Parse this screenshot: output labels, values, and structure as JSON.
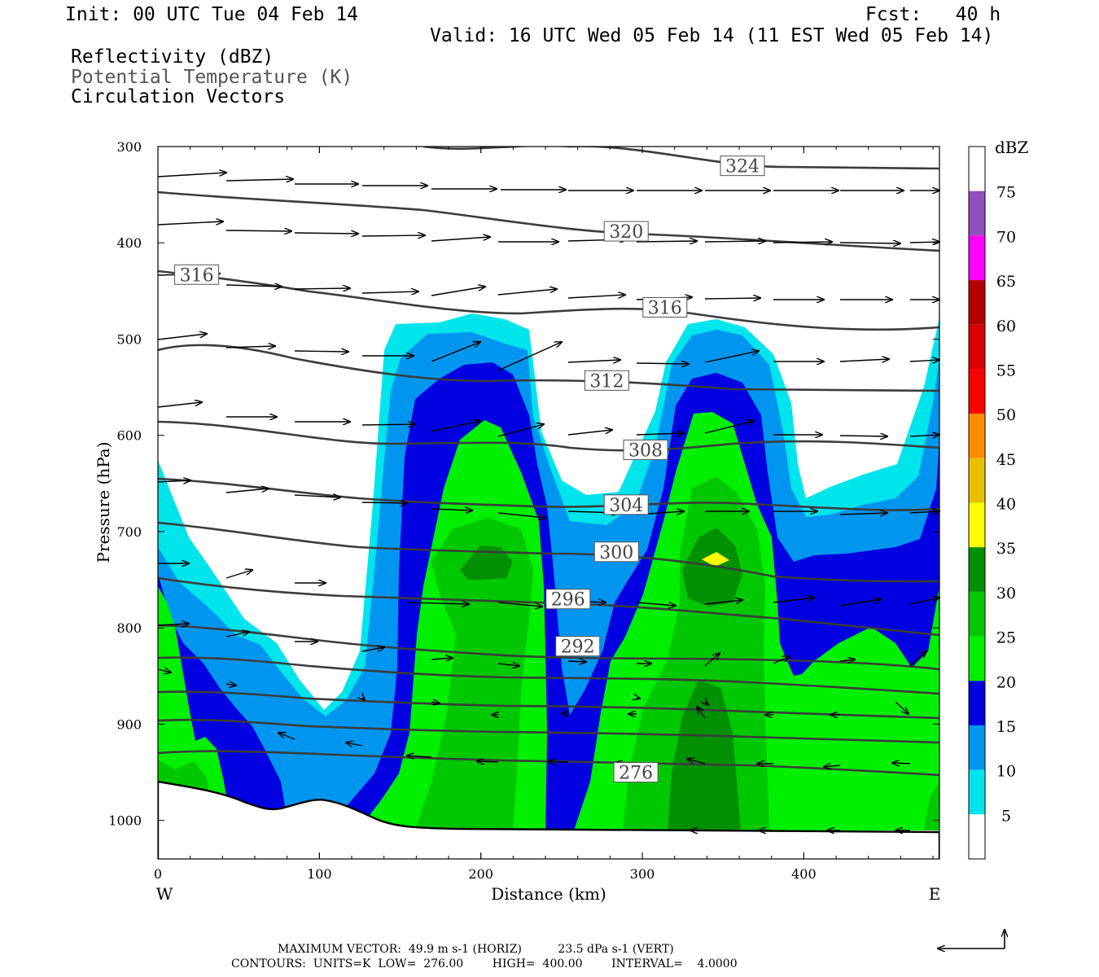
{
  "header": {
    "init": "Init: 00 UTC Tue 04 Feb 14",
    "fcst": "Fcst:   40 h",
    "valid": "Valid: 16 UTC Wed 05 Feb 14 (11 EST Wed 05 Feb 14)",
    "fields": [
      "Reflectivity (dBZ)",
      "Potential Temperature (K)",
      "Circulation Vectors"
    ]
  },
  "footer": {
    "maxvec": "MAXIMUM VECTOR:  49.9 m s-1 (HORIZ)          23.5 dPa s-1 (VERT)",
    "contours": "CONTOURS:  UNITS=K  LOW=  276.00        HIGH=  400.00        INTERVAL=    4.0000"
  },
  "colors": {
    "contour": "#3c3c3c",
    "terrain": "#000000",
    "vector": "#000000"
  },
  "chart_data": {
    "type": "cross-section",
    "xlabel": "Distance (km)",
    "ylabel": "Pressure (hPa)",
    "xlim": [
      0,
      484
    ],
    "ylim": [
      1040,
      300
    ],
    "x_ticks": [
      0,
      100,
      200,
      300,
      400
    ],
    "y_ticks": [
      300,
      400,
      500,
      600,
      700,
      800,
      900,
      1000
    ],
    "end_labels": {
      "left": "W",
      "right": "E"
    },
    "colorbar": {
      "title": "dBZ",
      "levels": [
        5,
        10,
        15,
        20,
        25,
        30,
        35,
        40,
        45,
        50,
        55,
        60,
        65,
        70,
        75
      ],
      "colors": [
        "#ffffff",
        "#00e4ec",
        "#0096f0",
        "#0000e0",
        "#00f000",
        "#00c800",
        "#009000",
        "#ffff00",
        "#e8c000",
        "#ff8c00",
        "#ff0000",
        "#d80000",
        "#b40000",
        "#ff00ff",
        "#9050c0",
        "#ffffff"
      ]
    },
    "contour_labels": [
      {
        "value": "324",
        "x": 362,
        "p": 320
      },
      {
        "value": "320",
        "x": 290,
        "p": 388
      },
      {
        "value": "316",
        "x": 24,
        "p": 433
      },
      {
        "value": "316",
        "x": 314,
        "p": 467
      },
      {
        "value": "312",
        "x": 278,
        "p": 543
      },
      {
        "value": "308",
        "x": 302,
        "p": 615
      },
      {
        "value": "304",
        "x": 290,
        "p": 672
      },
      {
        "value": "300",
        "x": 284,
        "p": 721
      },
      {
        "value": "296",
        "x": 254,
        "p": 770
      },
      {
        "value": "292",
        "x": 260,
        "p": 819
      },
      {
        "value": "276",
        "x": 296,
        "p": 950
      }
    ]
  }
}
